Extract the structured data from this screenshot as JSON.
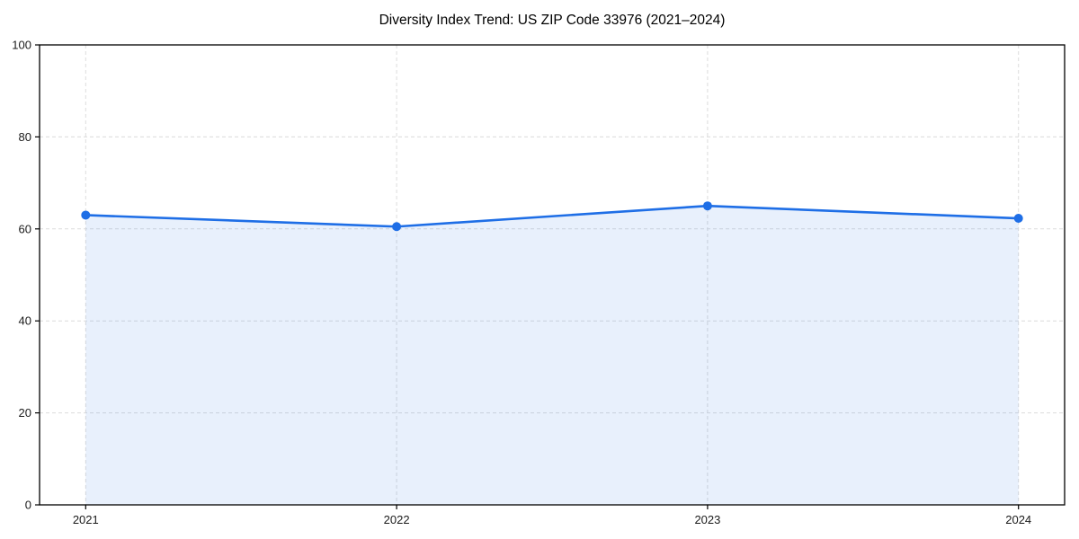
{
  "page": {
    "background": "#ffffff"
  },
  "chart_data": {
    "type": "line",
    "title": "Diversity Index Trend: US ZIP Code 33976 (2021–2024)",
    "categories": [
      "2021",
      "2022",
      "2023",
      "2024"
    ],
    "series": [
      {
        "name": "Diversity Index",
        "values": [
          63.0,
          60.5,
          65.0,
          62.3
        ]
      }
    ],
    "xlabel": "",
    "ylabel": "",
    "ylim": [
      0,
      100
    ],
    "yticks": [
      0,
      20,
      40,
      60,
      80,
      100
    ],
    "x_margin_frac": 0.045,
    "grid": {
      "show": true,
      "style": "dashed",
      "color": "#dcdcdc"
    },
    "legend": {
      "show": false
    },
    "area_fill": true,
    "colors": {
      "line": "#1e6ee6",
      "marker": "#1e6ee6",
      "area_fill": "rgba(31,110,230,0.10)",
      "spine": "#000000",
      "tick_label": "#1a1a1a",
      "title": "#000000"
    }
  }
}
